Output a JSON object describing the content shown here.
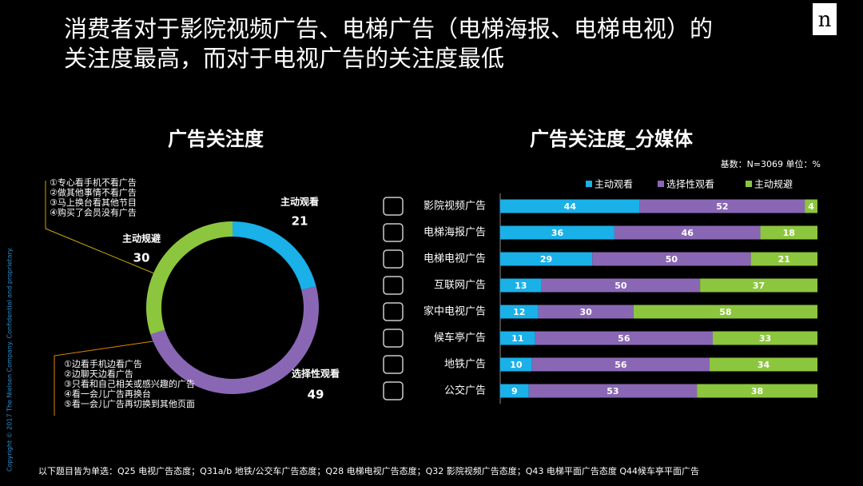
{
  "logo": "n",
  "title": [
    "消费者对于影院视频广告、电梯广告（电梯海报、电梯电视）的",
    "关注度最高，而对于电视广告的关注度最低"
  ],
  "copyright": "Copyright © 2017 The Nielsen Company. Confidential and proprietary.",
  "footnote": "以下题目皆为单选：Q25 电视广告态度；Q31a/b 地铁/公交车广告态度；Q28 电梯电视广告态度；Q32 影院视频广告态度；Q43 电梯平面广告态度 Q44候车亭平面广告",
  "chart_data": [
    {
      "type": "donut",
      "title": "广告关注度",
      "categories": [
        "主动观看",
        "选择性观看",
        "主动规避"
      ],
      "values": [
        21,
        49,
        30
      ],
      "colors": [
        "#1ab0e8",
        "#8a67b5",
        "#8cc63e"
      ],
      "annotations": [
        [
          "①专心看手机不看广告",
          "②做其他事情不看广告",
          "③马上换台看其他节目",
          "④购买了会员没有广告"
        ],
        [
          "①边看手机边看广告",
          "②边聊天边看广告",
          "③只看和自己相关或感兴趣的广告",
          "④看一会儿广告再换台",
          "⑤看一会儿广告再切换到其他页面"
        ]
      ]
    },
    {
      "type": "stacked-bar-horizontal",
      "title": "广告关注度_分媒体",
      "note": "基数：N=3069   单位：%",
      "categories": [
        "影院视频广告",
        "电梯海报广告",
        "电梯电视广告",
        "互联网广告",
        "家中电视广告",
        "候车亭广告",
        "地铁广告",
        "公交广告"
      ],
      "series": [
        {
          "name": "主动观看",
          "color": "#1ab0e8",
          "values": [
            44,
            36,
            29,
            13,
            12,
            11,
            10,
            9
          ]
        },
        {
          "name": "选择性观看",
          "color": "#8a67b5",
          "values": [
            52,
            46,
            50,
            50,
            30,
            56,
            56,
            53
          ]
        },
        {
          "name": "主动规避",
          "color": "#8cc63e",
          "values": [
            4,
            18,
            21,
            37,
            58,
            33,
            34,
            38
          ]
        }
      ],
      "xlim": [
        0,
        100
      ]
    }
  ]
}
